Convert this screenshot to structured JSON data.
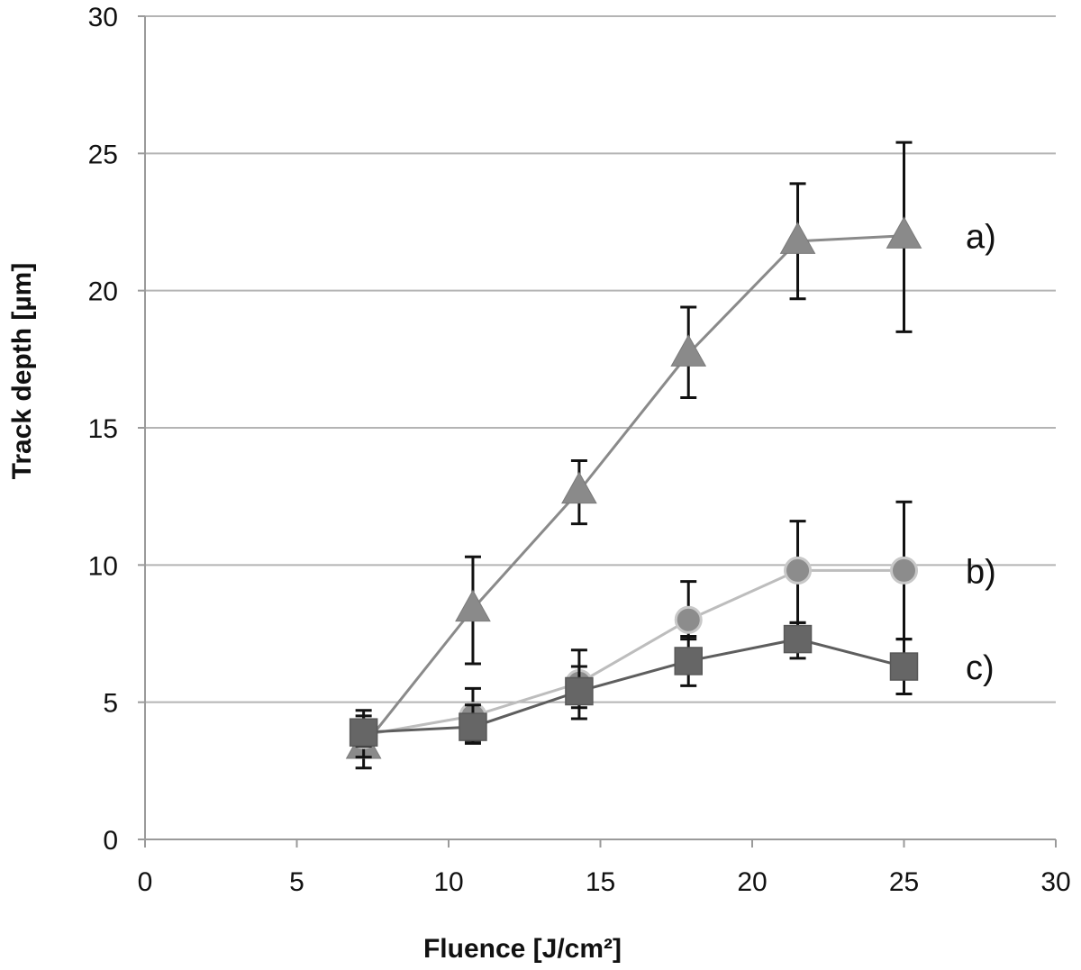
{
  "chart_data": {
    "type": "line",
    "xlabel": "Fluence [J/cm²]",
    "ylabel": "Track depth [µm]",
    "xlim": [
      0,
      30
    ],
    "ylim": [
      0,
      30
    ],
    "xticks": [
      "0",
      "5",
      "10",
      "15",
      "20",
      "25",
      "30"
    ],
    "yticks": [
      "0",
      "5",
      "10",
      "15",
      "20",
      "25",
      "30"
    ],
    "grid": "horizontal",
    "series": [
      {
        "name": "a)",
        "marker": "triangle",
        "color": "#8a8a8a",
        "line_color": "#8a8a8a",
        "x": [
          7.2,
          10.8,
          14.3,
          17.9,
          21.5,
          25.0
        ],
        "y": [
          3.4,
          8.4,
          12.7,
          17.7,
          21.8,
          22.0
        ],
        "err_low": [
          0.8,
          2.0,
          1.2,
          1.6,
          2.1,
          3.5
        ],
        "err_high": [
          0.8,
          1.9,
          1.1,
          1.7,
          2.1,
          3.4
        ]
      },
      {
        "name": "b)",
        "marker": "circle",
        "color": "#8c8c8c",
        "line_color": "#bdbdbd",
        "x": [
          7.2,
          10.8,
          14.3,
          17.9,
          21.5,
          25.0
        ],
        "y": [
          3.8,
          4.5,
          5.7,
          8.0,
          9.8,
          9.8
        ],
        "err_low": [
          0.8,
          0.9,
          0.9,
          0.7,
          1.9,
          2.5
        ],
        "err_high": [
          0.9,
          1.0,
          1.2,
          1.4,
          1.8,
          2.5
        ]
      },
      {
        "name": "c)",
        "marker": "square",
        "color": "#666666",
        "line_color": "#5e5e5e",
        "x": [
          7.2,
          10.8,
          14.3,
          17.9,
          21.5,
          25.0
        ],
        "y": [
          3.9,
          4.1,
          5.4,
          6.5,
          7.3,
          6.3
        ],
        "err_low": [
          0.5,
          0.6,
          1.0,
          0.9,
          0.7,
          1.0
        ],
        "err_high": [
          0.6,
          0.8,
          0.9,
          0.9,
          0.6,
          1.0
        ]
      }
    ]
  }
}
